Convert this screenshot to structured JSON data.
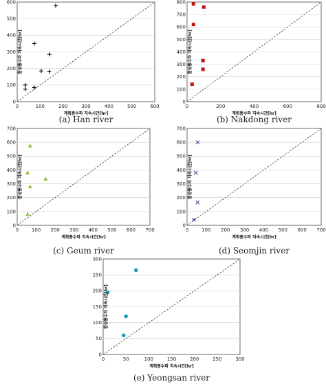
{
  "chart_data": [
    {
      "type": "scatter",
      "caption": "(a) Han river",
      "xlabel": "계획홍수파 지속시간[hr]",
      "ylabel": "합성홍수파 지속시간[hr]",
      "xlim": [
        0,
        600
      ],
      "ylim": [
        0,
        600
      ],
      "xticks": [
        0,
        100,
        200,
        300,
        400,
        500,
        600
      ],
      "yticks": [
        0,
        100,
        200,
        300,
        400,
        500,
        600
      ],
      "marker": "plus",
      "color": "#000000",
      "grid": "horizontal",
      "reference_line": "y = x (dashed)",
      "points": [
        [
          35,
          75
        ],
        [
          35,
          100
        ],
        [
          75,
          85
        ],
        [
          105,
          185
        ],
        [
          140,
          180
        ],
        [
          75,
          350
        ],
        [
          140,
          285
        ],
        [
          168,
          578
        ]
      ]
    },
    {
      "type": "scatter",
      "caption": "(b) Nakdong river",
      "xlabel": "계획홍수파 지속시간[hr]",
      "ylabel": "합성홍수파 지속시간[hr]",
      "xlim": [
        0,
        800
      ],
      "ylim": [
        0,
        800
      ],
      "xticks": [
        0,
        200,
        400,
        600,
        800
      ],
      "yticks": [
        0,
        100,
        200,
        300,
        400,
        500,
        600,
        700,
        800
      ],
      "marker": "square",
      "color": "#c0150f",
      "grid": "horizontal",
      "reference_line": "y = x (dashed)",
      "points": [
        [
          30,
          140
        ],
        [
          38,
          785
        ],
        [
          38,
          620
        ],
        [
          100,
          760
        ],
        [
          95,
          330
        ],
        [
          95,
          260
        ]
      ]
    },
    {
      "type": "scatter",
      "caption": "(c) Geum river",
      "xlabel": "계획홍수파 지속시간[hr]",
      "ylabel": "합성홍수파 지속시간[hr]",
      "xlim": [
        0,
        700
      ],
      "ylim": [
        0,
        700
      ],
      "xticks": [
        0,
        100,
        200,
        300,
        400,
        500,
        600,
        700
      ],
      "yticks": [
        0,
        100,
        200,
        300,
        400,
        500,
        600,
        700
      ],
      "marker": "triangle",
      "color": "#8bc33a",
      "grid": "horizontal",
      "reference_line": "y = x (dashed)",
      "points": [
        [
          55,
          80
        ],
        [
          55,
          380
        ],
        [
          68,
          575
        ],
        [
          68,
          280
        ],
        [
          150,
          335
        ]
      ]
    },
    {
      "type": "scatter",
      "caption": "(d) Seomjin river",
      "xlabel": "계획홍수파 지속시간[hr]",
      "ylabel": "합성홍수파 지속시간[hr]",
      "xlim": [
        0,
        700
      ],
      "ylim": [
        0,
        700
      ],
      "xticks": [
        0,
        100,
        200,
        300,
        400,
        500,
        600,
        700
      ],
      "yticks": [
        0,
        100,
        200,
        300,
        400,
        500,
        600,
        700
      ],
      "marker": "x",
      "color": "#5b2a86",
      "grid": "horizontal",
      "reference_line": "y = x (dashed)",
      "points": [
        [
          35,
          40
        ],
        [
          45,
          380
        ],
        [
          55,
          600
        ],
        [
          55,
          165
        ]
      ]
    },
    {
      "type": "scatter",
      "caption": "(e) Yeongsan river",
      "xlabel": "계획홍수파 지속시간[hr]",
      "ylabel": "합성홍수파 지속시간[hr]",
      "xlim": [
        0,
        300
      ],
      "ylim": [
        0,
        300
      ],
      "xticks": [
        0,
        50,
        100,
        150,
        200,
        250,
        300
      ],
      "yticks": [
        0,
        50,
        100,
        150,
        200,
        250,
        300
      ],
      "marker": "circle",
      "color": "#1e9cc4",
      "grid": "horizontal",
      "reference_line": "y = x (dashed)",
      "points": [
        [
          10,
          195
        ],
        [
          45,
          60
        ],
        [
          50,
          120
        ],
        [
          72,
          265
        ]
      ]
    }
  ],
  "colors": {
    "grid": "#cfcfcf",
    "frame": "#444444",
    "reference": "#333333"
  }
}
